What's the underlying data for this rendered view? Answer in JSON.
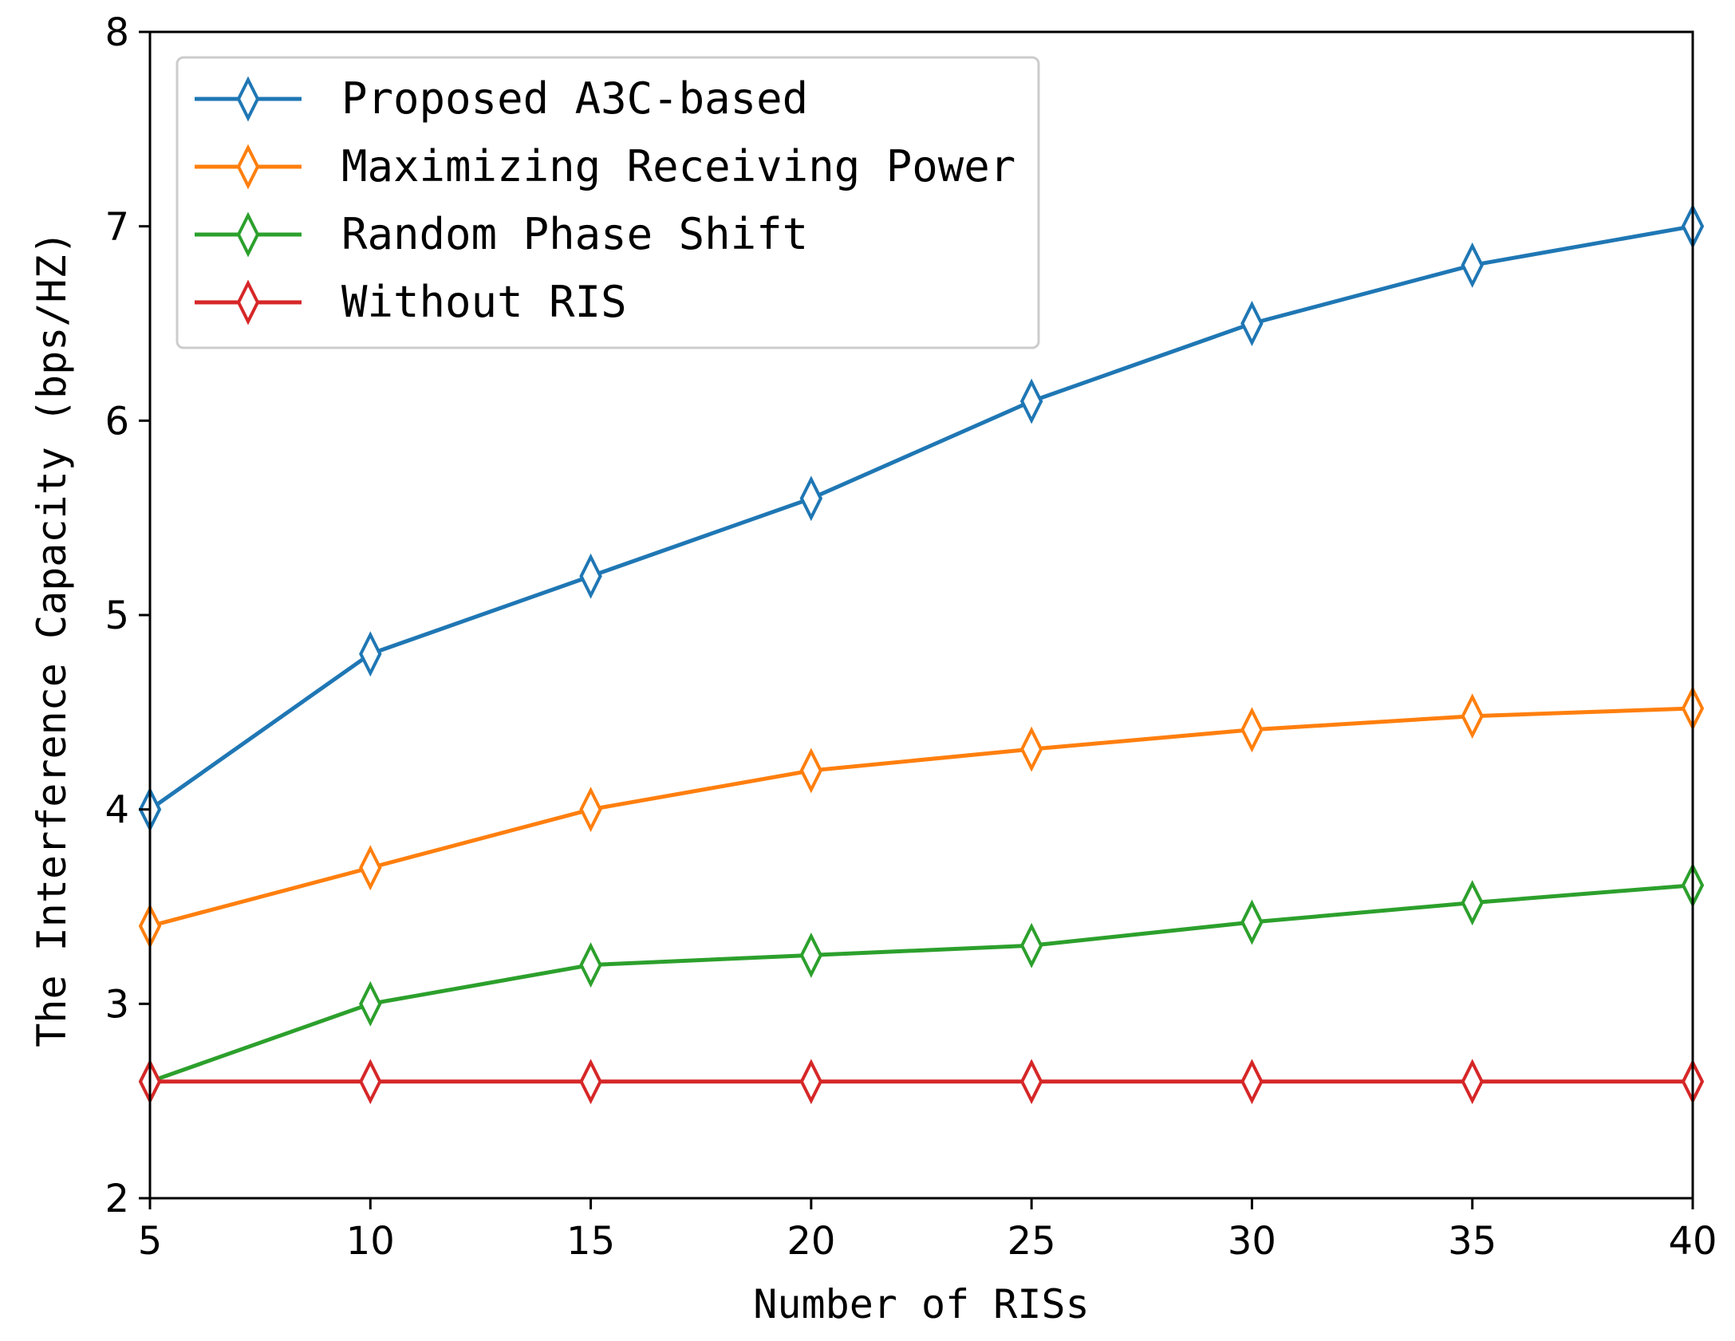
{
  "chart_data": {
    "type": "line",
    "title": "",
    "xlabel": "Number of RISs",
    "ylabel": "The Interference Capacity (bps/HZ)",
    "x": [
      5,
      10,
      15,
      20,
      25,
      30,
      35,
      40
    ],
    "xlim": [
      5,
      40
    ],
    "ylim": [
      2,
      8
    ],
    "xticks": [
      "5",
      "10",
      "15",
      "20",
      "25",
      "30",
      "35",
      "40"
    ],
    "yticks": [
      "2",
      "3",
      "4",
      "5",
      "6",
      "7",
      "8"
    ],
    "grid": false,
    "legend_position": "top-left",
    "marker": "thin-diamond",
    "series": [
      {
        "name": "Proposed A3C-based",
        "color": "#1f77b4",
        "values": [
          4.0,
          4.8,
          5.2,
          5.6,
          6.1,
          6.5,
          6.8,
          7.0
        ]
      },
      {
        "name": "Maximizing Receiving Power",
        "color": "#ff7f0e",
        "values": [
          3.4,
          3.7,
          4.0,
          4.2,
          4.31,
          4.41,
          4.48,
          4.52
        ]
      },
      {
        "name": "Random Phase Shift",
        "color": "#2ca02c",
        "values": [
          2.6,
          3.0,
          3.2,
          3.25,
          3.3,
          3.42,
          3.52,
          3.61
        ]
      },
      {
        "name": "Without RIS",
        "color": "#d62728",
        "values": [
          2.6,
          2.6,
          2.6,
          2.6,
          2.6,
          2.6,
          2.6,
          2.6
        ]
      }
    ]
  }
}
